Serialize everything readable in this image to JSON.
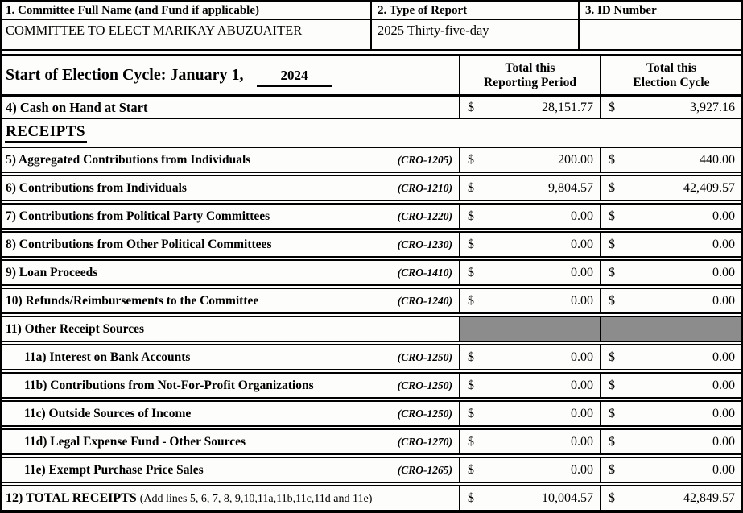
{
  "header": {
    "committee_name_label": "1. Committee Full Name (and Fund if applicable)",
    "committee_name_value": "COMMITTEE TO ELECT MARIKAY ABUZUAITER",
    "report_type_label": "2. Type of Report",
    "report_type_value": "2025 Thirty-five-day",
    "id_number_label": "3. ID Number",
    "id_number_value": ""
  },
  "cycle": {
    "start_label": "Start of Election Cycle: January 1,",
    "year": "2024",
    "reporting_header_line1": "Total this",
    "reporting_header_line2": "Reporting Period",
    "cycle_header_line1": "Total this",
    "cycle_header_line2": "Election Cycle"
  },
  "currency_symbol": "$",
  "receipts_heading": "RECEIPTS",
  "rows": {
    "r4": {
      "label": "4) Cash on Hand at Start",
      "reporting": "28,151.77",
      "cycle": "3,927.16"
    },
    "r5": {
      "label": "5) Aggregated Contributions from Individuals",
      "code": "(CRO-1205)",
      "reporting": "200.00",
      "cycle": "440.00"
    },
    "r6": {
      "label": "6) Contributions from Individuals",
      "code": "(CRO-1210)",
      "reporting": "9,804.57",
      "cycle": "42,409.57"
    },
    "r7": {
      "label": "7) Contributions from Political Party Committees",
      "code": "(CRO-1220)",
      "reporting": "0.00",
      "cycle": "0.00"
    },
    "r8": {
      "label": "8) Contributions from Other Political Committees",
      "code": "(CRO-1230)",
      "reporting": "0.00",
      "cycle": "0.00"
    },
    "r9": {
      "label": "9) Loan Proceeds",
      "code": "(CRO-1410)",
      "reporting": "0.00",
      "cycle": "0.00"
    },
    "r10": {
      "label": "10) Refunds/Reimbursements to the Committee",
      "code": "(CRO-1240)",
      "reporting": "0.00",
      "cycle": "0.00"
    },
    "r11": {
      "label": "11) Other Receipt Sources"
    },
    "r11a": {
      "label": "11a) Interest on Bank Accounts",
      "code": "(CRO-1250)",
      "reporting": "0.00",
      "cycle": "0.00"
    },
    "r11b": {
      "label": "11b) Contributions from Not-For-Profit Organizations",
      "code": "(CRO-1250)",
      "reporting": "0.00",
      "cycle": "0.00"
    },
    "r11c": {
      "label": "11c) Outside Sources of Income",
      "code": "(CRO-1250)",
      "reporting": "0.00",
      "cycle": "0.00"
    },
    "r11d": {
      "label": "11d) Legal Expense Fund - Other Sources",
      "code": "(CRO-1270)",
      "reporting": "0.00",
      "cycle": "0.00"
    },
    "r11e": {
      "label": "11e) Exempt Purchase Price Sales",
      "code": "(CRO-1265)",
      "reporting": "0.00",
      "cycle": "0.00"
    },
    "r12": {
      "label": "12) TOTAL RECEIPTS",
      "note": "(Add lines 5, 6, 7, 8, 9,10,11a,11b,11c,11d and 11e)",
      "reporting": "10,004.57",
      "cycle": "42,849.57"
    }
  }
}
